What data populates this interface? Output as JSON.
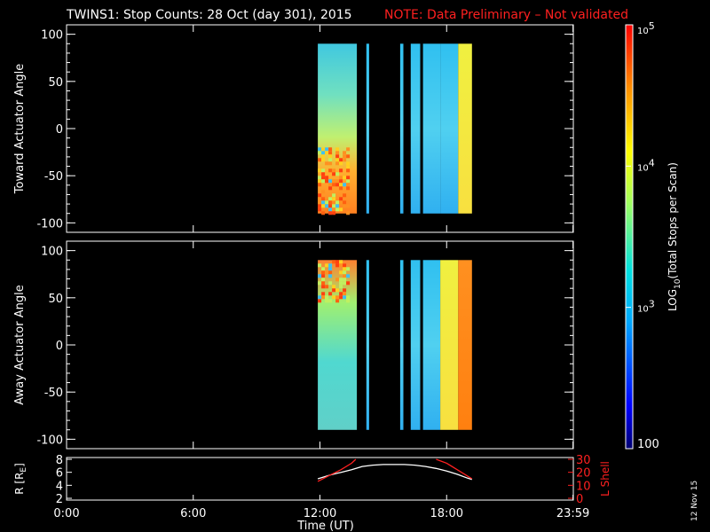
{
  "title": "TWINS1: Stop Counts: 28 Oct (day 301), 2015",
  "note": "NOTE: Data Preliminary – Not validated",
  "datestamp": "12 Nov 15",
  "colors": {
    "background": "#000000",
    "axes": "#ffffff",
    "note": "#ff2020",
    "lshell": "#ff2020",
    "orbit": "#ffffff"
  },
  "chart_data": [
    {
      "type": "heatmap",
      "id": "toward",
      "ylabel": "Toward Actuator Angle",
      "ylim": [
        -110,
        110
      ],
      "yticks": [
        -100,
        -50,
        0,
        50,
        100
      ],
      "xlim": [
        0,
        24
      ],
      "data_intervals_hours": [
        [
          11.9,
          13.75
        ],
        [
          14.2,
          14.33
        ],
        [
          15.8,
          15.95
        ],
        [
          16.3,
          16.75
        ],
        [
          16.88,
          17.7
        ],
        [
          17.7,
          18.55
        ],
        [
          18.55,
          19.2
        ]
      ],
      "value_range_log10": [
        2,
        5
      ]
    },
    {
      "type": "heatmap",
      "id": "away",
      "ylabel": "Away Actuator Angle",
      "ylim": [
        -110,
        110
      ],
      "yticks": [
        -100,
        -50,
        0,
        50,
        100
      ],
      "xlim": [
        0,
        24
      ],
      "data_intervals_hours": [
        [
          11.9,
          13.75
        ],
        [
          14.2,
          14.33
        ],
        [
          15.8,
          15.95
        ],
        [
          16.3,
          16.75
        ],
        [
          16.88,
          17.7
        ],
        [
          17.7,
          18.55
        ],
        [
          18.55,
          19.2
        ]
      ],
      "value_range_log10": [
        2,
        5
      ]
    },
    {
      "type": "line",
      "id": "ephemeris",
      "ylabel_left": "R [R",
      "ylabel_left_sub": "E",
      "ylabel_left_end": "]",
      "ylabel_right": "L Shell",
      "ylim_left": [
        2,
        8
      ],
      "yticks_left": [
        2,
        4,
        6,
        8
      ],
      "ylim_right": [
        0,
        30
      ],
      "yticks_right": [
        0,
        10,
        20,
        30
      ],
      "xlim": [
        0,
        24
      ],
      "series": [
        {
          "name": "R",
          "axis": "left",
          "x": [
            11.9,
            12.5,
            13.0,
            13.5,
            14.0,
            14.5,
            15.0,
            15.5,
            16.0,
            16.5,
            17.0,
            17.5,
            18.0,
            18.5,
            19.0,
            19.2
          ],
          "y": [
            5.0,
            5.6,
            6.0,
            6.4,
            6.9,
            7.1,
            7.2,
            7.2,
            7.2,
            7.1,
            6.9,
            6.6,
            6.2,
            5.7,
            5.1,
            4.9
          ]
        },
        {
          "name": "L Shell",
          "axis": "right",
          "x": [
            11.9,
            12.5,
            13.0,
            13.5,
            13.7
          ],
          "y": [
            13,
            18,
            22,
            27,
            30
          ]
        },
        {
          "name": "L Shell",
          "axis": "right",
          "x": [
            17.5,
            18.0,
            18.5,
            19.0,
            19.2
          ],
          "y": [
            30,
            27,
            22,
            17,
            15
          ]
        }
      ]
    }
  ],
  "xaxis": {
    "label": "Time (UT)",
    "ticks": [
      0,
      6,
      12,
      18,
      23.983
    ],
    "tick_labels": [
      "0:00",
      "6:00",
      "12:00",
      "18:00",
      "23:59"
    ]
  },
  "colorbar": {
    "label_main": "LOG",
    "label_sub": "10",
    "label_rest": "(Total Stops per Scan)",
    "tick_labels": [
      "100",
      "10",
      "10",
      "10"
    ],
    "tick_exponents": [
      "",
      "3",
      "4",
      "5"
    ],
    "tick_values_log10": [
      2,
      3,
      4,
      5
    ]
  }
}
